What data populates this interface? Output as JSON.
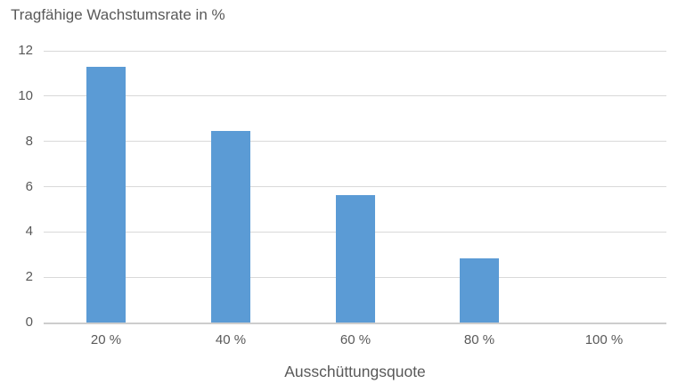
{
  "chart_data": {
    "type": "bar",
    "title": "Tragfähige Wachstumsrate in %",
    "xlabel": "Ausschüttungsquote",
    "ylabel": "",
    "categories": [
      "20 %",
      "40 %",
      "60 %",
      "80 %",
      "100 %"
    ],
    "values": [
      11.28,
      8.46,
      5.64,
      2.82,
      0
    ],
    "ylim": [
      0,
      12
    ],
    "yticks": [
      0,
      2,
      4,
      6,
      8,
      10,
      12
    ],
    "grid": "horizontal",
    "legend": "none",
    "colors": {
      "bar": "#5B9BD5",
      "gridline": "#D9D9D9",
      "axis_line": "#CDCDCD",
      "text": "#595959"
    }
  }
}
